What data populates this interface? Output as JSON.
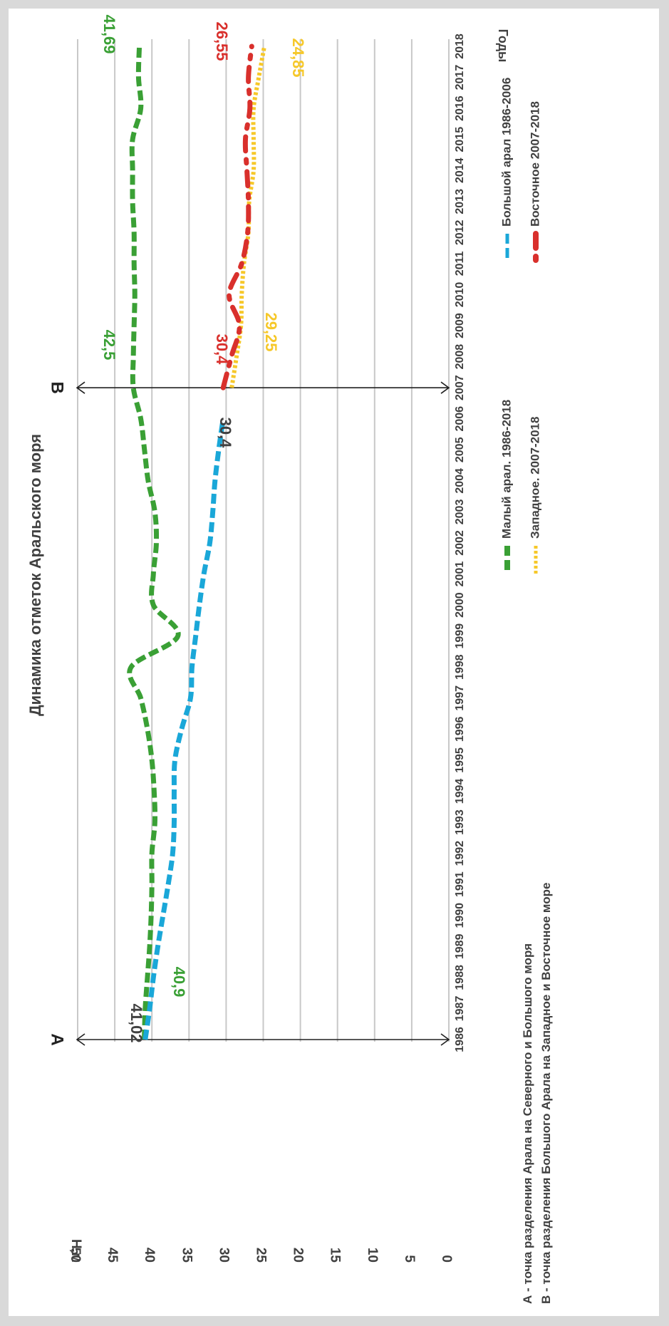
{
  "chart_data": {
    "type": "line",
    "title": "Динамика отметок Аральского моря",
    "ylabel": "Н,м",
    "xlabel": "Годы",
    "ylim": [
      0,
      50
    ],
    "yticks": [
      "0",
      "5",
      "10",
      "15",
      "20",
      "25",
      "30",
      "35",
      "40",
      "45",
      "50"
    ],
    "categories": [
      "1986",
      "1987",
      "1988",
      "1989",
      "1990",
      "1991",
      "1992",
      "1993",
      "1994",
      "1995",
      "1996",
      "1997",
      "1998",
      "1999",
      "2000",
      "2001",
      "2002",
      "2003",
      "2004",
      "2005",
      "2006",
      "2007",
      "2008",
      "2009",
      "2010",
      "2011",
      "2012",
      "2013",
      "2014",
      "2015",
      "2016",
      "2017",
      "2018"
    ],
    "grid": true,
    "series": [
      {
        "name": "Малый арал. 1986-2018",
        "color": "#3aa035",
        "style": "dashed",
        "x": [
          1986,
          1987,
          1988,
          1989,
          1990,
          1991,
          1992,
          1993,
          1994,
          1995,
          1996,
          1997,
          1998,
          1999,
          2000,
          2001,
          2002,
          2003,
          2004,
          2005,
          2006,
          2007,
          2008,
          2009,
          2010,
          2011,
          2012,
          2013,
          2014,
          2015,
          2016,
          2017,
          2018
        ],
        "values": [
          41.02,
          40.9,
          40.6,
          40.3,
          40.1,
          40.0,
          40.0,
          39.6,
          39.7,
          40.0,
          40.6,
          41.5,
          42.8,
          36.5,
          39.8,
          39.8,
          39.4,
          39.6,
          40.5,
          41.0,
          41.5,
          42.5,
          42.5,
          42.4,
          42.3,
          42.4,
          42.4,
          42.6,
          42.6,
          42.6,
          41.5,
          41.8,
          41.69
        ]
      },
      {
        "name": "Большой арал 1986-2006",
        "color": "#1aa7d8",
        "style": "dashed",
        "x": [
          1986,
          1987,
          1988,
          1989,
          1990,
          1991,
          1992,
          1993,
          1994,
          1995,
          1996,
          1997,
          1998,
          1999,
          2000,
          2001,
          2002,
          2003,
          2004,
          2005,
          2006
        ],
        "values": [
          40.9,
          40.3,
          39.8,
          39.2,
          38.5,
          37.8,
          37.2,
          37.0,
          37.0,
          36.9,
          36.0,
          34.8,
          34.6,
          34.1,
          33.6,
          33.0,
          32.2,
          31.8,
          31.5,
          31.0,
          30.4
        ]
      },
      {
        "name": "Западное. 2007-2018",
        "color": "#f6c82a",
        "style": "dotted",
        "x": [
          2007,
          2008,
          2009,
          2010,
          2011,
          2012,
          2013,
          2014,
          2015,
          2016,
          2017,
          2018
        ],
        "values": [
          29.25,
          28.6,
          28.0,
          27.9,
          27.6,
          27.0,
          26.9,
          26.3,
          26.3,
          26.3,
          25.6,
          24.85
        ]
      },
      {
        "name": "Восточное 2007-2018",
        "color": "#d9302c",
        "style": "dashdot",
        "x": [
          2007,
          2008,
          2009,
          2010,
          2011,
          2012,
          2013,
          2014,
          2015,
          2016,
          2017,
          2018
        ],
        "values": [
          30.4,
          29.3,
          28.2,
          29.6,
          27.9,
          27.1,
          27.0,
          27.2,
          27.4,
          26.8,
          27.0,
          26.55
        ]
      }
    ],
    "data_labels": [
      {
        "text": "41,02",
        "color": "#404040"
      },
      {
        "text": "40,9",
        "color": "#3aa035"
      },
      {
        "text": "42,5",
        "color": "#3aa035"
      },
      {
        "text": "41,69",
        "color": "#3aa035"
      },
      {
        "text": "30,4",
        "color": "#404040"
      },
      {
        "text": "30,4",
        "color": "#d9302c"
      },
      {
        "text": "29,25",
        "color": "#f6c82a"
      },
      {
        "text": "26,55",
        "color": "#d9302c"
      },
      {
        "text": "24,85",
        "color": "#f6c82a"
      }
    ],
    "markers": [
      {
        "label": "A",
        "year": 1986
      },
      {
        "label": "B",
        "year": 2007
      }
    ],
    "notes": [
      "А - точка разделения Арала на Северного и Большого моря",
      "В - точка разделения Большого Арала на Западное и Восточное море"
    ]
  }
}
